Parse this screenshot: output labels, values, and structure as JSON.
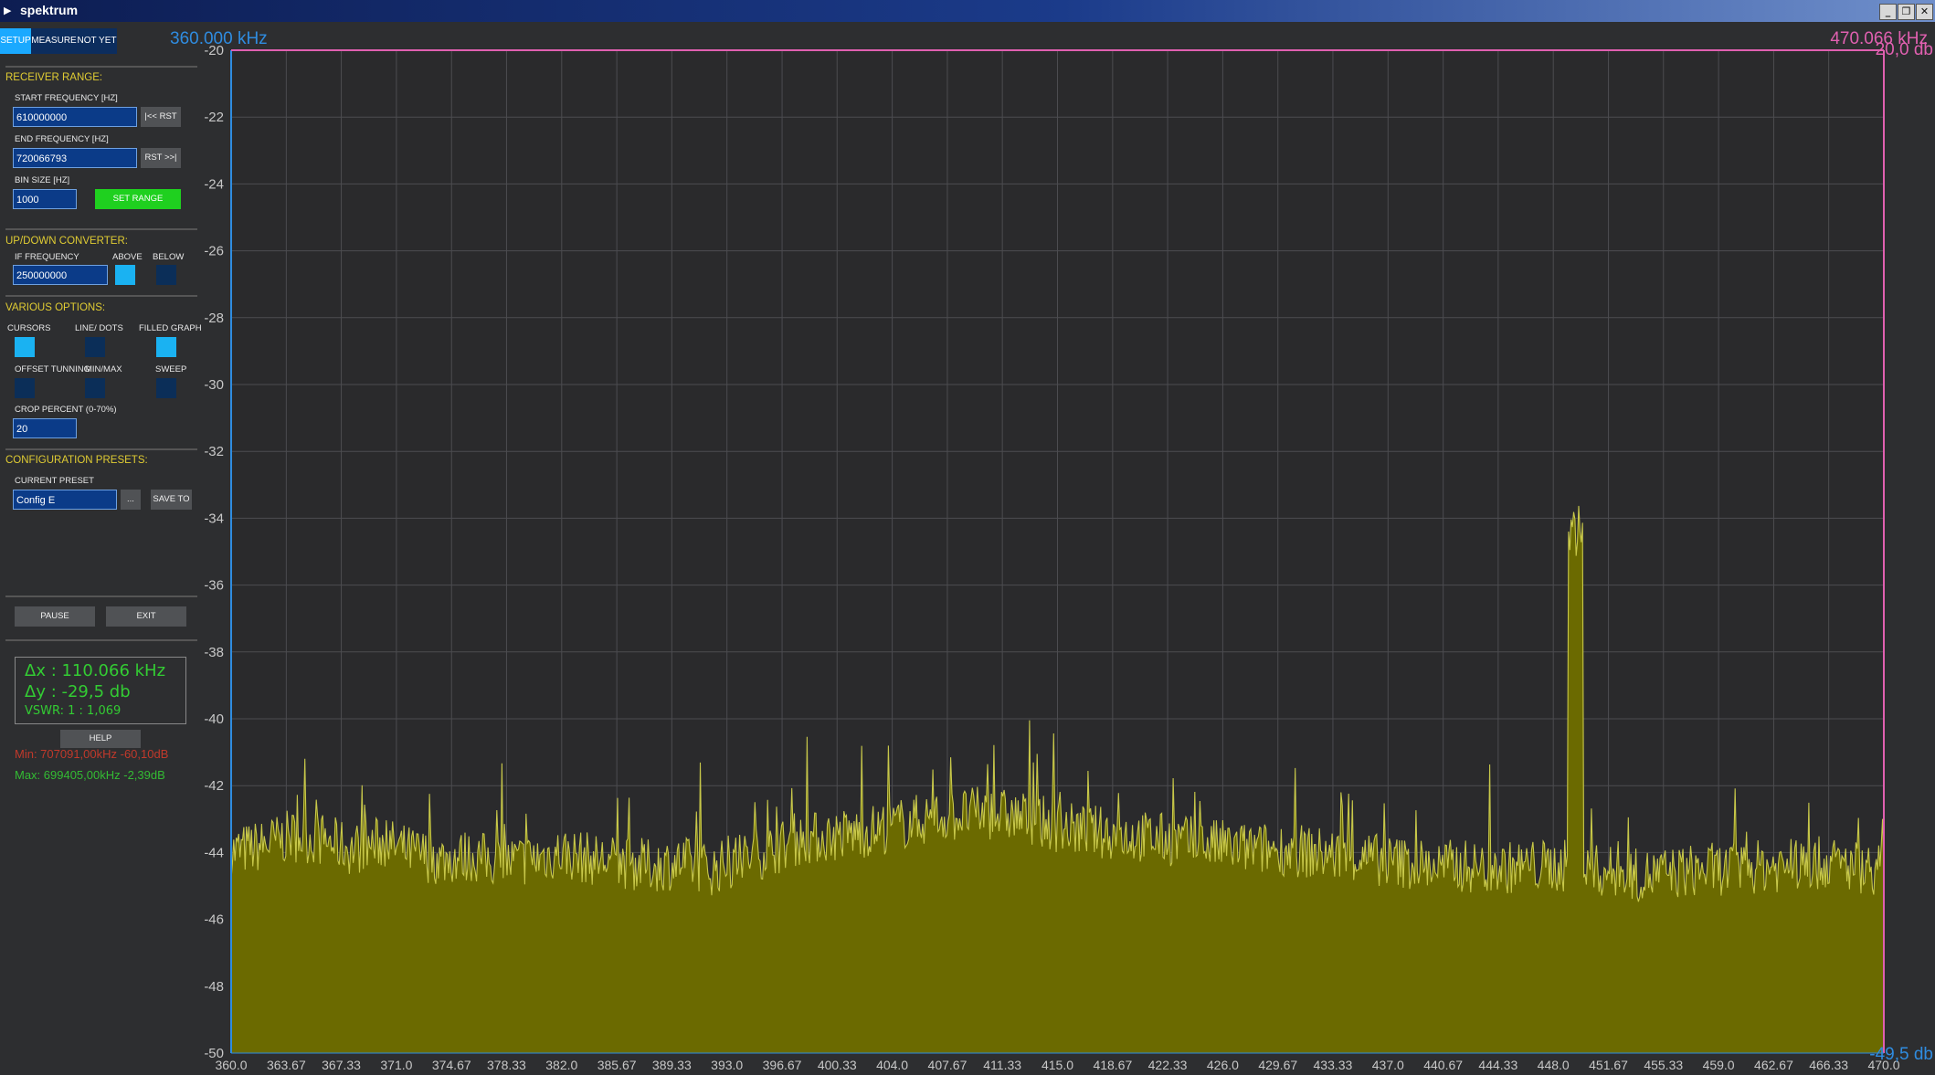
{
  "window": {
    "title": "spektrum",
    "buttons": [
      "_",
      "❐",
      "✕"
    ]
  },
  "tabs": [
    "SETUP",
    "MEASURE",
    "NOT YET"
  ],
  "receiver_range": {
    "header": "RECEIVER RANGE:",
    "start_label": "START FREQUENCY [HZ]",
    "start_value": "610000000",
    "start_button": "|<< RST",
    "end_label": "END FREQUENCY [HZ]",
    "end_value": "720066793",
    "end_button": "RST >>|",
    "bin_label": "BIN SIZE [HZ]",
    "bin_value": "1000",
    "set_range_button": "SET RANGE"
  },
  "converter": {
    "header": "UP/DOWN CONVERTER:",
    "if_label": "IF FREQUENCY",
    "if_value": "250000000",
    "above_label": "ABOVE",
    "below_label": "BELOW",
    "above_checked": true,
    "below_checked": false
  },
  "options": {
    "header": "VARIOUS OPTIONS:",
    "cursors_label": "CURSORS",
    "line_dots_label": "LINE/ DOTS",
    "filled_graph_label": "FILLED GRAPH",
    "offset_tunning_label": "OFFSET TUNNING",
    "min_max_label": "MIN/MAX",
    "sweep_label": "SWEEP",
    "cursors_checked": true,
    "line_dots_checked": false,
    "filled_graph_checked": true,
    "offset_tunning_checked": false,
    "min_max_checked": false,
    "sweep_checked": false,
    "crop_label": "CROP PERCENT (0-70%)",
    "crop_value": "20"
  },
  "presets": {
    "header": "CONFIGURATION PRESETS:",
    "current_label": "CURRENT PRESET",
    "current_value": "Config E",
    "browse_button": "...",
    "save_button": "SAVE TO"
  },
  "pause_button": "PAUSE",
  "exit_button": "EXIT",
  "delta": {
    "dx": "Δx : 110.066 kHz",
    "dy": "Δy : -29,5 db",
    "vswr": "VSWR: 1 : 1,069"
  },
  "help_button": "HELP",
  "min_text": "Min: 707091,00kHz -60,10dB",
  "max_text": "Max: 699405,00kHz -2,39dB",
  "colors": {
    "fill": "#6b6a00",
    "trace": "#c8c84a",
    "grid": "#4c4c50",
    "cursor_left": "#2f8ce0",
    "cursor_right": "#e060b0",
    "accent_blue": "#1aa9ff",
    "set_range_green": "#1fd01f"
  },
  "chart_data": {
    "type": "area",
    "cursor_left_label": "360.000 kHz",
    "cursor_right_label": "470.066 kHz",
    "top_db_label": "-20,0 db",
    "bottom_db_label": "-49,5 db",
    "xlabel": "",
    "ylabel": "",
    "xlim": [
      360.0,
      470.0
    ],
    "ylim": [
      -50,
      -20
    ],
    "grid": true,
    "y_ticks": [
      "-20",
      "-22",
      "-24",
      "-26",
      "-28",
      "-30",
      "-32",
      "-34",
      "-36",
      "-38",
      "-40",
      "-42",
      "-44",
      "-46",
      "-48",
      "-50"
    ],
    "x_ticks": [
      "360.0",
      "363.67",
      "367.33",
      "371.0",
      "374.67",
      "378.33",
      "382.0",
      "385.67",
      "389.33",
      "393.0",
      "396.67",
      "400.33",
      "404.0",
      "407.67",
      "411.33",
      "415.0",
      "418.67",
      "422.33",
      "426.0",
      "429.67",
      "433.33",
      "437.0",
      "440.67",
      "444.33",
      "448.0",
      "451.67",
      "455.33",
      "459.0",
      "462.67",
      "466.33",
      "470.0"
    ],
    "series": [
      {
        "x": [
          360.0,
          362.0,
          364.0,
          366.0,
          368.0,
          370.0,
          372.0,
          374.0,
          376.0,
          378.0,
          380.0,
          382.0,
          384.0,
          386.0,
          388.0,
          390.0,
          392.0,
          394.0,
          396.0,
          398.0,
          400.0,
          402.0,
          404.0,
          406.0,
          408.0,
          410.0,
          412.0,
          414.0,
          416.0,
          418.0,
          420.0,
          422.0,
          424.0,
          426.0,
          428.0,
          430.0,
          432.0,
          434.0,
          436.0,
          438.0,
          440.0,
          442.0,
          444.0,
          446.0,
          448.0,
          449.0,
          450.0,
          452.0,
          454.0,
          456.0,
          458.0,
          460.0,
          462.0,
          464.0,
          466.0,
          468.0,
          470.0
        ],
        "y": [
          -44.0,
          -43.8,
          -43.5,
          -43.6,
          -43.9,
          -43.7,
          -44.0,
          -44.2,
          -44.1,
          -44.3,
          -44.2,
          -44.0,
          -44.2,
          -44.3,
          -44.4,
          -44.3,
          -44.5,
          -44.2,
          -43.9,
          -43.6,
          -43.5,
          -43.4,
          -43.2,
          -43.0,
          -42.9,
          -42.8,
          -42.9,
          -43.1,
          -43.3,
          -43.4,
          -43.5,
          -43.6,
          -43.7,
          -43.8,
          -43.9,
          -43.9,
          -44.0,
          -44.1,
          -44.2,
          -44.3,
          -44.4,
          -44.4,
          -44.5,
          -44.4,
          -44.4,
          -34.4,
          -44.5,
          -44.6,
          -44.7,
          -44.6,
          -44.5,
          -44.5,
          -44.4,
          -44.4,
          -44.3,
          -44.4,
          -44.5
        ]
      }
    ]
  }
}
